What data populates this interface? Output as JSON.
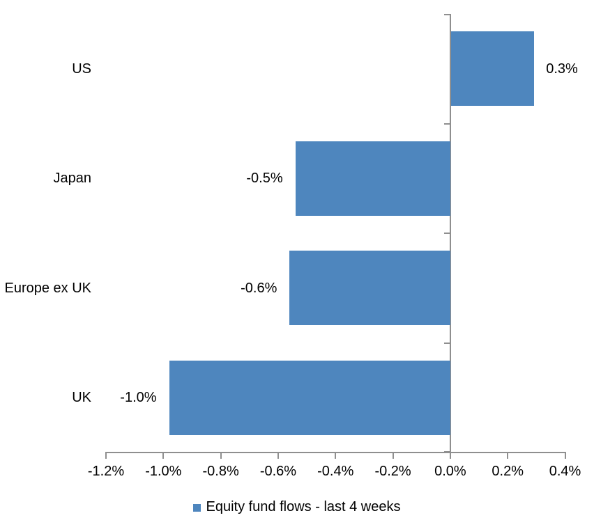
{
  "chart_data": {
    "type": "bar",
    "orientation": "horizontal",
    "title": "",
    "categories": [
      "US",
      "Japan",
      "Europe ex UK",
      "UK"
    ],
    "values": [
      0.29,
      -0.54,
      -0.56,
      -0.98
    ],
    "value_labels": [
      "0.3%",
      "-0.5%",
      "-0.6%",
      "-1.0%"
    ],
    "series_name": "Equity fund flows - last 4 weeks",
    "xlim": [
      -1.2,
      0.4
    ],
    "x_tick_step": 0.2,
    "x_tick_labels": [
      "-1.2%",
      "-1.0%",
      "-0.8%",
      "-0.6%",
      "-0.4%",
      "-0.2%",
      "0.0%",
      "0.2%",
      "0.4%"
    ],
    "grid": "off",
    "legend_position": "bottom",
    "colors": {
      "bar": "#4E86BE",
      "axis": "#8F8F8F",
      "text": "#000000",
      "background": "#FFFFFF"
    }
  }
}
